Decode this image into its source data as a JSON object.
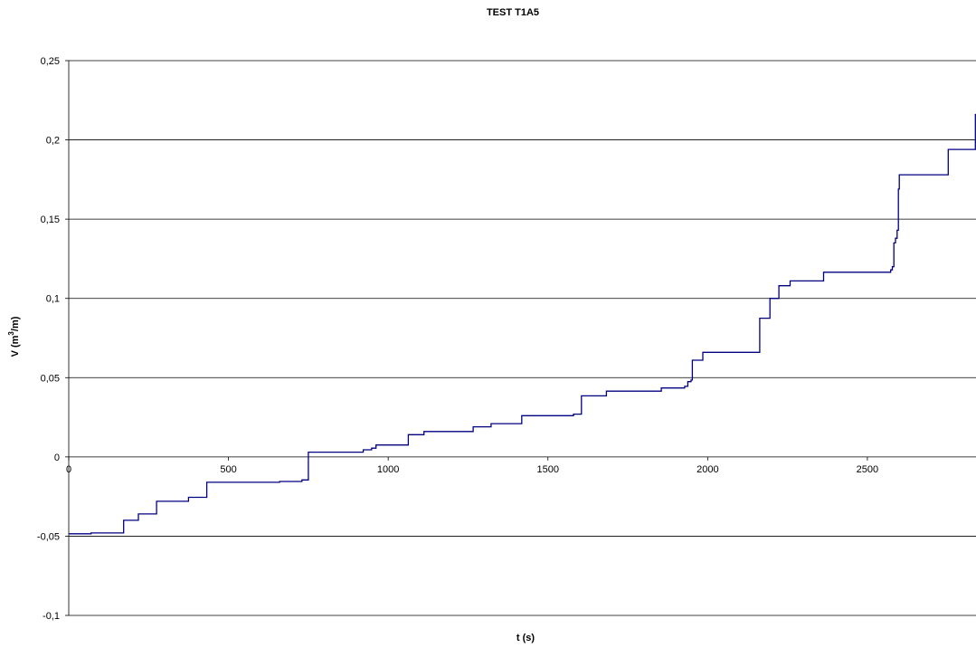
{
  "chart_data": {
    "type": "line",
    "title": "TEST T1A5",
    "xlabel": "t (s)",
    "ylabel_parts": [
      "V (m",
      "3",
      "/m)"
    ],
    "xlim": [
      0,
      2840
    ],
    "ylim": [
      -0.1,
      0.25
    ],
    "x_ticks": [
      {
        "value": 0,
        "label": "0"
      },
      {
        "value": 500,
        "label": "500"
      },
      {
        "value": 1000,
        "label": "1000"
      },
      {
        "value": 1500,
        "label": "1500"
      },
      {
        "value": 2000,
        "label": "2000"
      },
      {
        "value": 2500,
        "label": "2500"
      }
    ],
    "y_ticks": [
      {
        "value": -0.1,
        "label": "-0,1"
      },
      {
        "value": -0.05,
        "label": "-0,05"
      },
      {
        "value": 0,
        "label": "0"
      },
      {
        "value": 0.05,
        "label": "0,05"
      },
      {
        "value": 0.1,
        "label": "0,1"
      },
      {
        "value": 0.15,
        "label": "0,15"
      },
      {
        "value": 0.2,
        "label": "0,2"
      },
      {
        "value": 0.25,
        "label": "0,25"
      }
    ],
    "grid": "horizontal",
    "legend": "none",
    "line_color": "#000080",
    "series": [
      {
        "step": true,
        "points": [
          [
            0,
            -0.0485
          ],
          [
            70,
            -0.048
          ],
          [
            172,
            -0.04
          ],
          [
            218,
            -0.036
          ],
          [
            275,
            -0.028
          ],
          [
            375,
            -0.0255
          ],
          [
            432,
            -0.016
          ],
          [
            660,
            -0.0155
          ],
          [
            730,
            -0.0145
          ],
          [
            750,
            0.003
          ],
          [
            922,
            0.0045
          ],
          [
            948,
            0.0055
          ],
          [
            962,
            0.0075
          ],
          [
            1063,
            0.014
          ],
          [
            1112,
            0.016
          ],
          [
            1266,
            0.019
          ],
          [
            1322,
            0.021
          ],
          [
            1418,
            0.026
          ],
          [
            1580,
            0.027
          ],
          [
            1605,
            0.0385
          ],
          [
            1683,
            0.0415
          ],
          [
            1855,
            0.0435
          ],
          [
            1928,
            0.0445
          ],
          [
            1938,
            0.0475
          ],
          [
            1948,
            0.0485
          ],
          [
            1952,
            0.061
          ],
          [
            1985,
            0.066
          ],
          [
            2163,
            0.0875
          ],
          [
            2195,
            0.1
          ],
          [
            2223,
            0.108
          ],
          [
            2258,
            0.111
          ],
          [
            2363,
            0.1165
          ],
          [
            2573,
            0.118
          ],
          [
            2578,
            0.12
          ],
          [
            2583,
            0.135
          ],
          [
            2588,
            0.138
          ],
          [
            2593,
            0.143
          ],
          [
            2597,
            0.169
          ],
          [
            2600,
            0.178
          ],
          [
            2753,
            0.194
          ],
          [
            2838,
            0.216
          ]
        ]
      }
    ]
  }
}
